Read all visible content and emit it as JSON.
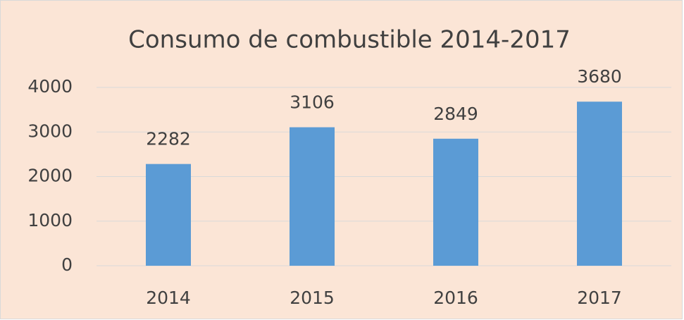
{
  "chart_data": {
    "type": "bar",
    "title": "Consumo de combustible 2014-2017",
    "categories": [
      "2014",
      "2015",
      "2016",
      "2017"
    ],
    "values": [
      2282,
      3106,
      2849,
      3680
    ],
    "color": "#5b9bd5",
    "ylim": [
      0,
      4000
    ],
    "yticks": [
      0,
      1000,
      2000,
      3000,
      4000
    ],
    "grid": true
  }
}
